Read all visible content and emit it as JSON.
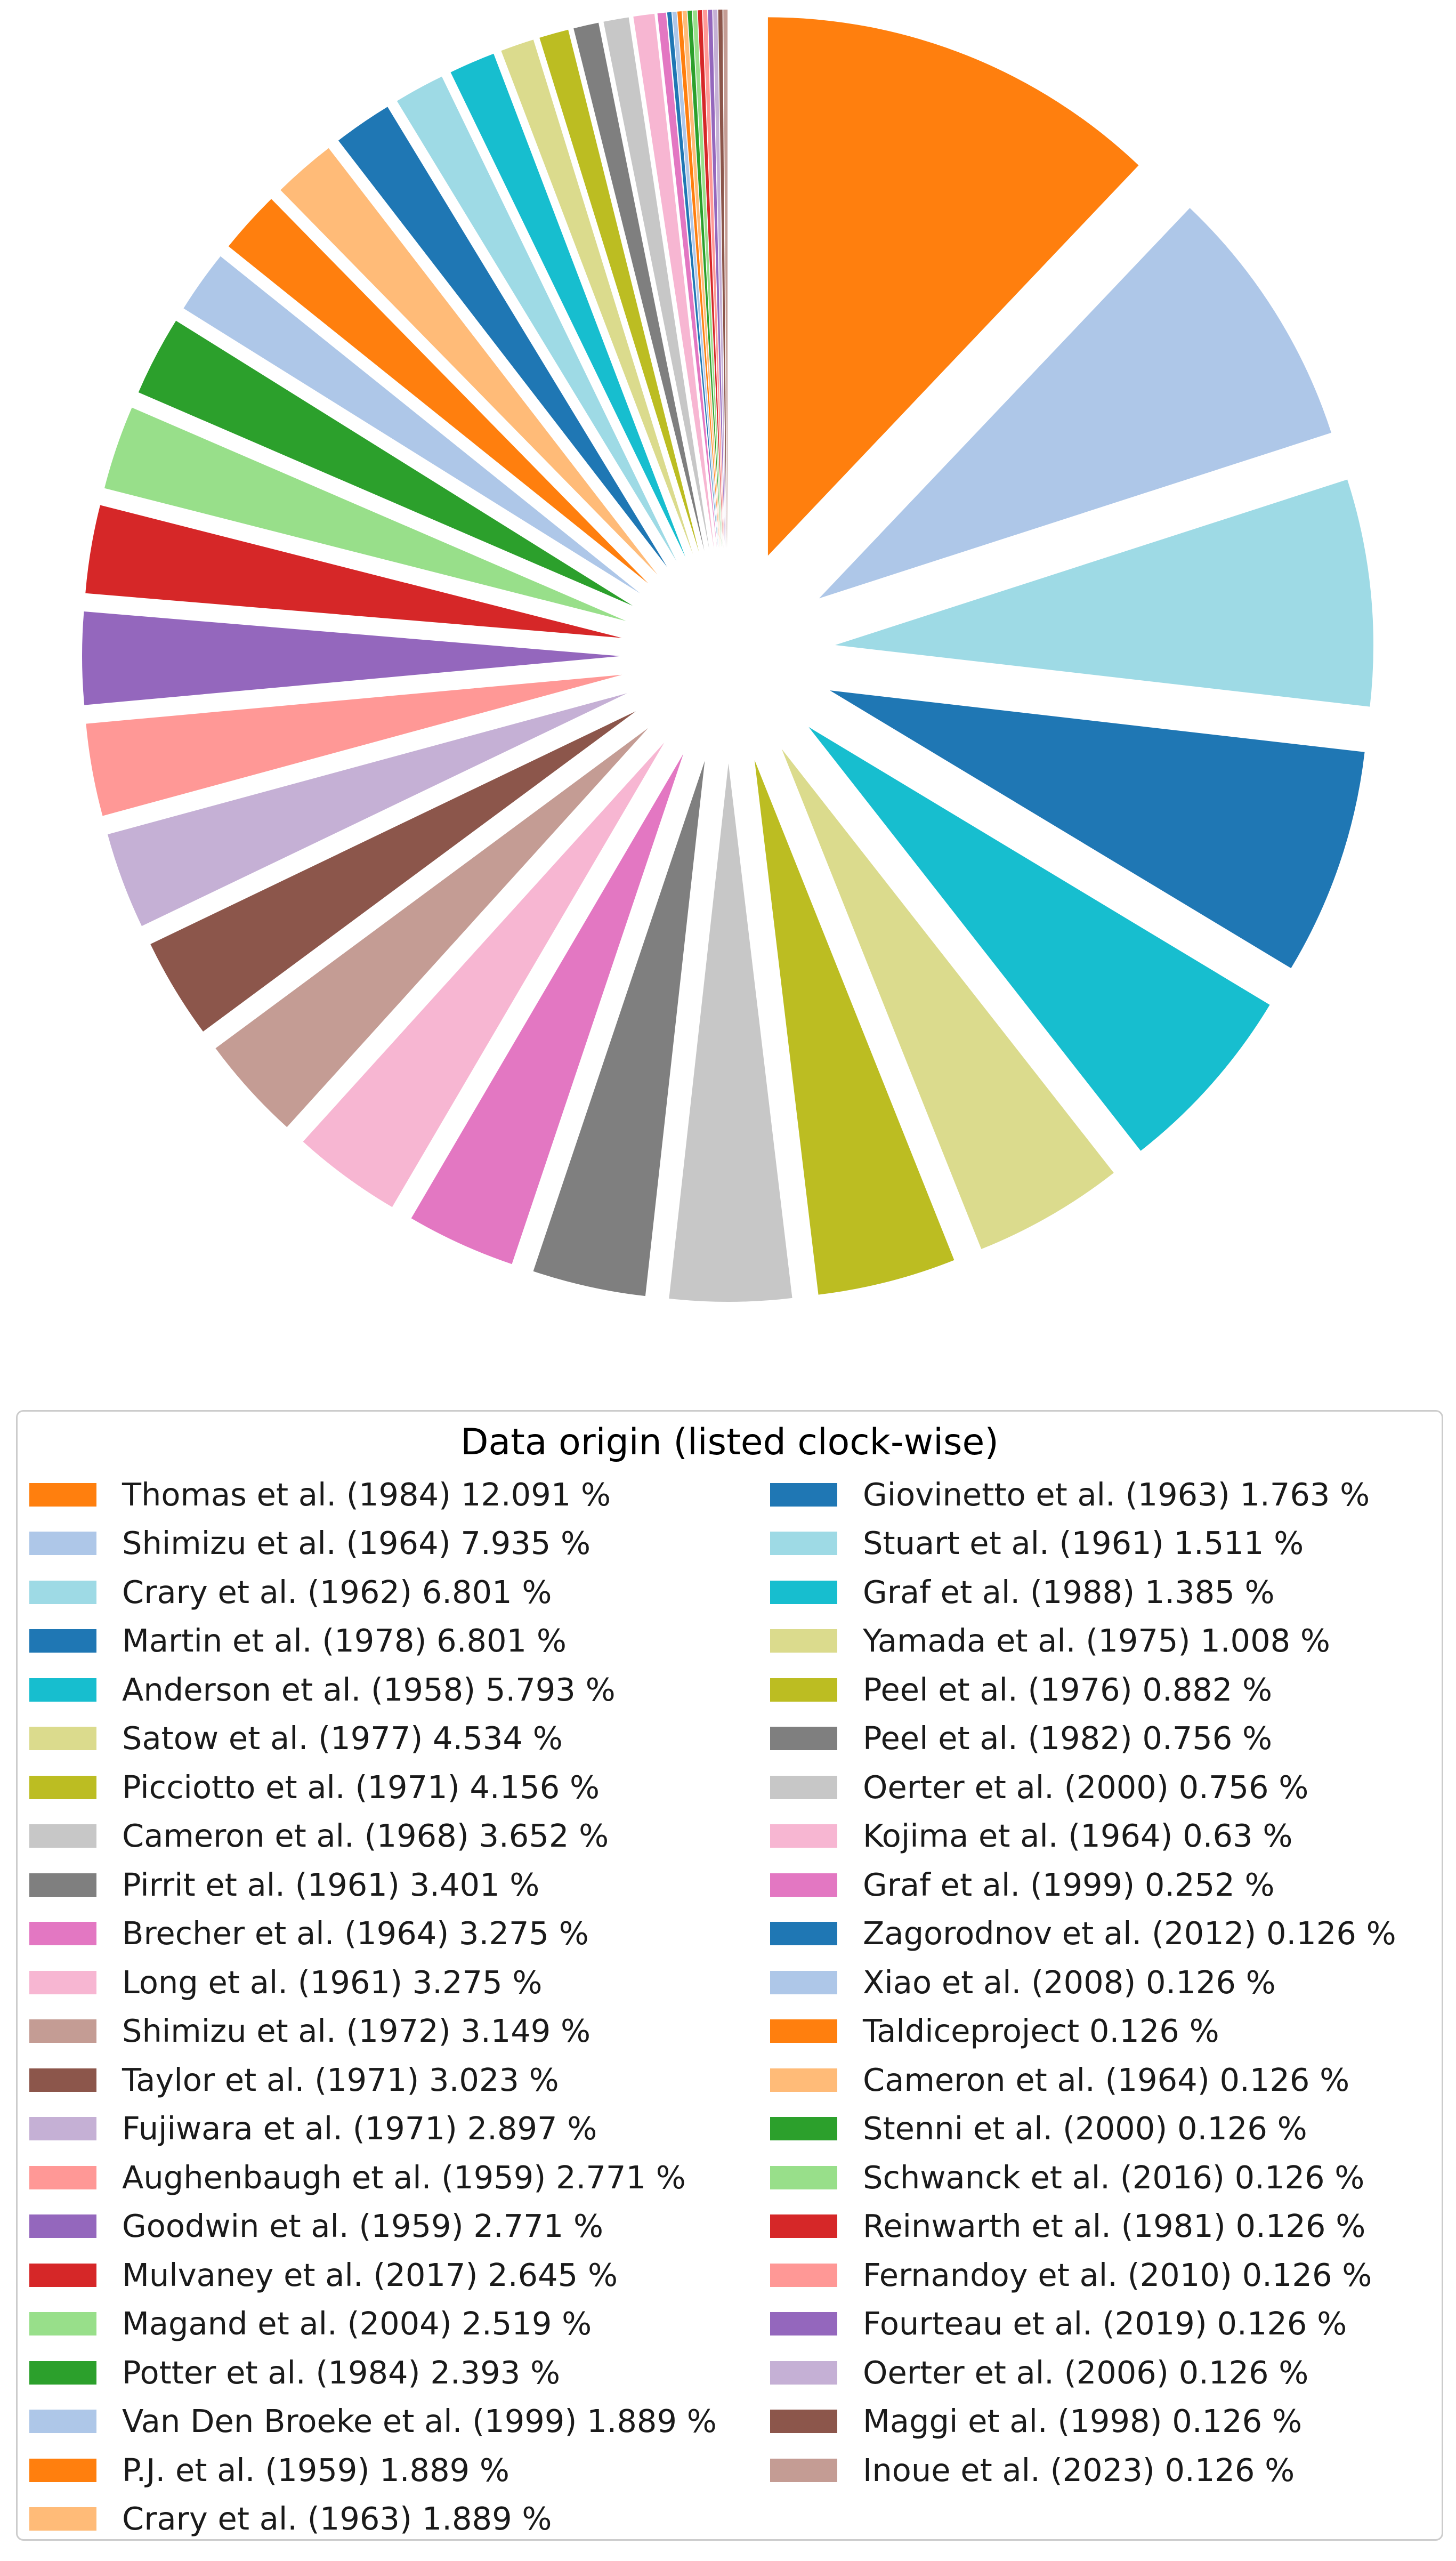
{
  "chart_data": {
    "type": "pie",
    "title": "",
    "legend": {
      "title": "Data origin (listed clock-wise)",
      "placement": "bottom",
      "columns": 2
    },
    "slices": [
      {
        "label": "Thomas et al. (1984) 12.091 %",
        "value": 12.091,
        "color": "#ff7f0e"
      },
      {
        "label": "Shimizu et al. (1964) 7.935 %",
        "value": 7.935,
        "color": "#aec7e8"
      },
      {
        "label": "Crary et al. (1962) 6.801 %",
        "value": 6.801,
        "color": "#9edae5"
      },
      {
        "label": "Martin et al. (1978) 6.801 %",
        "value": 6.801,
        "color": "#1f77b4"
      },
      {
        "label": "Anderson et al. (1958) 5.793 %",
        "value": 5.793,
        "color": "#17becf"
      },
      {
        "label": "Satow et al. (1977) 4.534 %",
        "value": 4.534,
        "color": "#dbdb8d"
      },
      {
        "label": "Picciotto et al. (1971) 4.156 %",
        "value": 4.156,
        "color": "#bcbd22"
      },
      {
        "label": "Cameron et al. (1968) 3.652 %",
        "value": 3.652,
        "color": "#c7c7c7"
      },
      {
        "label": "Pirrit et al. (1961) 3.401 %",
        "value": 3.401,
        "color": "#7f7f7f"
      },
      {
        "label": "Brecher et al. (1964) 3.275 %",
        "value": 3.275,
        "color": "#e377c2"
      },
      {
        "label": "Long et al. (1961) 3.275 %",
        "value": 3.275,
        "color": "#f7b6d2"
      },
      {
        "label": "Shimizu et al. (1972) 3.149 %",
        "value": 3.149,
        "color": "#c49c94"
      },
      {
        "label": "Taylor et al. (1971) 3.023 %",
        "value": 3.023,
        "color": "#8c564b"
      },
      {
        "label": "Fujiwara et al. (1971) 2.897 %",
        "value": 2.897,
        "color": "#c5b0d5"
      },
      {
        "label": "Aughenbaugh et al. (1959) 2.771 %",
        "value": 2.771,
        "color": "#ff9896"
      },
      {
        "label": "Goodwin et al. (1959) 2.771 %",
        "value": 2.771,
        "color": "#9467bd"
      },
      {
        "label": "Mulvaney et al. (2017) 2.645 %",
        "value": 2.645,
        "color": "#d62728"
      },
      {
        "label": "Magand et al. (2004) 2.519 %",
        "value": 2.519,
        "color": "#98df8a"
      },
      {
        "label": "Potter et al. (1984) 2.393 %",
        "value": 2.393,
        "color": "#2ca02c"
      },
      {
        "label": "Van Den Broeke et al. (1999) 1.889 %",
        "value": 1.889,
        "color": "#aec7e8"
      },
      {
        "label": "P.J. et al. (1959) 1.889 %",
        "value": 1.889,
        "color": "#ff7f0e"
      },
      {
        "label": "Crary et al. (1963) 1.889 %",
        "value": 1.889,
        "color": "#ffbb78"
      },
      {
        "label": "Giovinetto et al. (1963) 1.763 %",
        "value": 1.763,
        "color": "#1f77b4"
      },
      {
        "label": "Stuart et al. (1961) 1.511 %",
        "value": 1.511,
        "color": "#9edae5"
      },
      {
        "label": "Graf et al. (1988) 1.385 %",
        "value": 1.385,
        "color": "#17becf"
      },
      {
        "label": "Yamada et al. (1975) 1.008 %",
        "value": 1.008,
        "color": "#dbdb8d"
      },
      {
        "label": "Peel et al. (1976) 0.882 %",
        "value": 0.882,
        "color": "#bcbd22"
      },
      {
        "label": "Peel et al. (1982) 0.756 %",
        "value": 0.756,
        "color": "#7f7f7f"
      },
      {
        "label": "Oerter et al. (2000) 0.756 %",
        "value": 0.756,
        "color": "#c7c7c7"
      },
      {
        "label": "Kojima et al. (1964) 0.63 %",
        "value": 0.63,
        "color": "#f7b6d2"
      },
      {
        "label": "Graf et al. (1999) 0.252 %",
        "value": 0.252,
        "color": "#e377c2"
      },
      {
        "label": "Zagorodnov et al. (2012) 0.126 %",
        "value": 0.126,
        "color": "#1f77b4"
      },
      {
        "label": "Xiao et al. (2008) 0.126 %",
        "value": 0.126,
        "color": "#aec7e8"
      },
      {
        "label": "Taldiceproject 0.126 %",
        "value": 0.126,
        "color": "#ff7f0e"
      },
      {
        "label": "Cameron et al. (1964) 0.126 %",
        "value": 0.126,
        "color": "#ffbb78"
      },
      {
        "label": "Stenni et al. (2000) 0.126 %",
        "value": 0.126,
        "color": "#2ca02c"
      },
      {
        "label": "Schwanck et al. (2016) 0.126 %",
        "value": 0.126,
        "color": "#98df8a"
      },
      {
        "label": "Reinwarth et al. (1981) 0.126 %",
        "value": 0.126,
        "color": "#d62728"
      },
      {
        "label": "Fernandoy et al. (2010) 0.126 %",
        "value": 0.126,
        "color": "#ff9896"
      },
      {
        "label": "Fourteau et al. (2019) 0.126 %",
        "value": 0.126,
        "color": "#9467bd"
      },
      {
        "label": "Oerter et al. (2006) 0.126 %",
        "value": 0.126,
        "color": "#c5b0d5"
      },
      {
        "label": "Maggi et al. (1998) 0.126 %",
        "value": 0.126,
        "color": "#8c564b"
      },
      {
        "label": "Inoue et al. (2023) 0.126 %",
        "value": 0.126,
        "color": "#c49c94"
      }
    ]
  }
}
